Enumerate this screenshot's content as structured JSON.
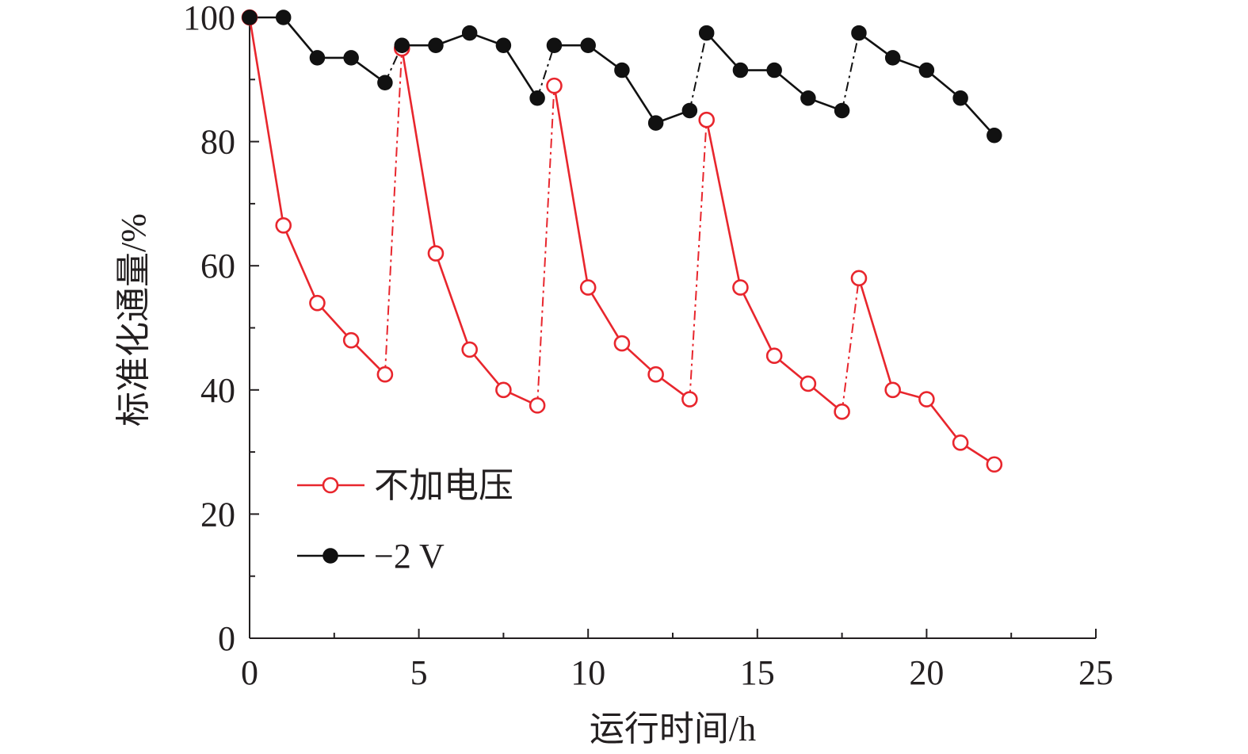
{
  "chart_data": {
    "type": "line",
    "xlabel": "运行时间/h",
    "ylabel": "标准化通量/%",
    "xlim": [
      0,
      25
    ],
    "ylim": [
      0,
      100
    ],
    "xticks": [
      0,
      5,
      10,
      15,
      20,
      25
    ],
    "yticks": [
      0,
      20,
      40,
      60,
      80,
      100
    ],
    "grid": false,
    "legend_position": "lower-left",
    "series": [
      {
        "name": "不加电压",
        "color": "#e8262d",
        "marker": "open-circle",
        "segments": [
          {
            "x": [
              0,
              1,
              2,
              3,
              4
            ],
            "y": [
              100,
              66.5,
              54,
              48,
              42.5
            ]
          },
          {
            "x": [
              4.5,
              5.5,
              6.5,
              7.5,
              8.5
            ],
            "y": [
              95,
              62,
              46.5,
              40,
              37.5
            ]
          },
          {
            "x": [
              9,
              10,
              11,
              12,
              13
            ],
            "y": [
              89,
              56.5,
              47.5,
              42.5,
              38.5
            ]
          },
          {
            "x": [
              13.5,
              14.5,
              15.5,
              16.5,
              17.5
            ],
            "y": [
              83.5,
              56.5,
              45.5,
              41,
              36.5
            ]
          },
          {
            "x": [
              18,
              19,
              20,
              21,
              22
            ],
            "y": [
              58,
              40,
              38.5,
              31.5,
              28
            ]
          }
        ]
      },
      {
        "name": "−2 V",
        "color": "#111111",
        "marker": "filled-circle",
        "segments": [
          {
            "x": [
              0,
              1,
              2,
              3,
              4
            ],
            "y": [
              100,
              100,
              93.5,
              93.5,
              89.5
            ]
          },
          {
            "x": [
              4.5,
              5.5,
              6.5,
              7.5,
              8.5
            ],
            "y": [
              95.5,
              95.5,
              97.5,
              95.5,
              87
            ]
          },
          {
            "x": [
              9,
              10,
              11,
              12,
              13
            ],
            "y": [
              95.5,
              95.5,
              91.5,
              83,
              85
            ]
          },
          {
            "x": [
              13.5,
              14.5,
              15.5,
              16.5,
              17.5
            ],
            "y": [
              97.5,
              91.5,
              91.5,
              87,
              85
            ]
          },
          {
            "x": [
              18,
              19,
              20,
              21,
              22
            ],
            "y": [
              97.5,
              93.5,
              91.5,
              87,
              81
            ]
          }
        ]
      }
    ]
  }
}
